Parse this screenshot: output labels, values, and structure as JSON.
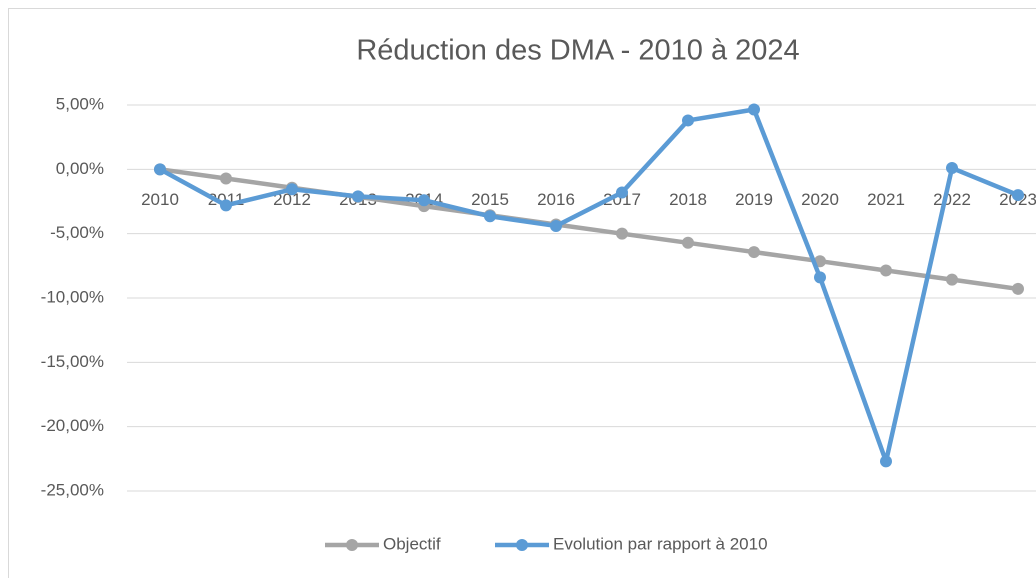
{
  "chart_data": {
    "type": "line",
    "title": "Réduction des DMA - 2010 à 2024",
    "categories": [
      "2010",
      "2011",
      "2012",
      "2013",
      "2014",
      "2015",
      "2016",
      "2017",
      "2018",
      "2019",
      "2020",
      "2021",
      "2022",
      "2023"
    ],
    "series": [
      {
        "name": "Objectif",
        "color": "#a5a5a5",
        "values": [
          0,
          -0.71,
          -1.43,
          -2.14,
          -2.86,
          -3.57,
          -4.29,
          -5.0,
          -5.71,
          -6.43,
          -7.14,
          -7.86,
          -8.57,
          -9.29
        ]
      },
      {
        "name": "Evolution par rapport à 2010",
        "color": "#5b9bd5",
        "values": [
          0,
          -2.8,
          -1.55,
          -2.1,
          -2.4,
          -3.65,
          -4.4,
          -1.8,
          3.8,
          4.65,
          -8.4,
          -22.7,
          0.1,
          -2.0
        ]
      }
    ],
    "ylim": [
      -25,
      5
    ],
    "yticks": [
      {
        "value": 5,
        "label": "5,00%"
      },
      {
        "value": 0,
        "label": "0,00%"
      },
      {
        "value": -5,
        "label": "-5,00%"
      },
      {
        "value": -10,
        "label": "-10,00%"
      },
      {
        "value": -15,
        "label": "-15,00%"
      },
      {
        "value": -20,
        "label": "-20,00%"
      },
      {
        "value": -25,
        "label": "-25,00%"
      }
    ],
    "grid": true,
    "legend": "bottom"
  }
}
